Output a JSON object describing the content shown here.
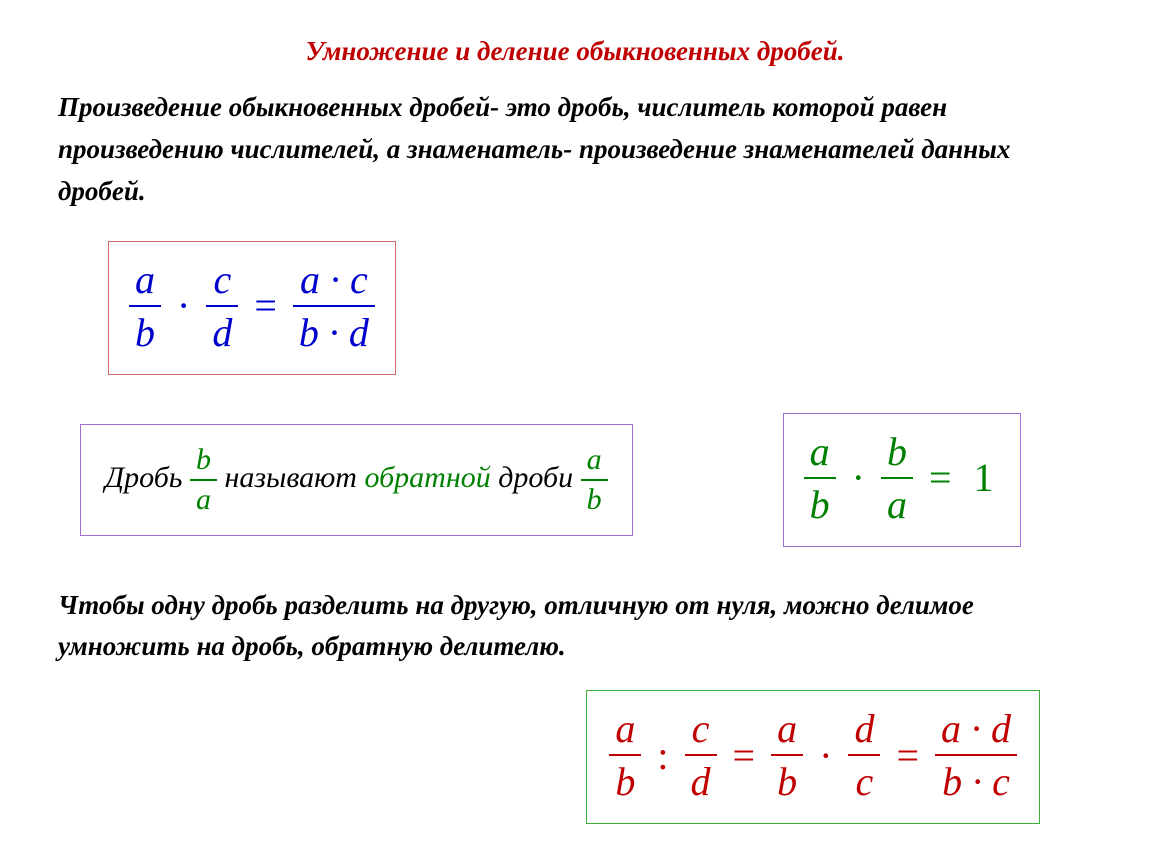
{
  "title": "Умножение  и деление  обыкновенных дробей.",
  "rule1": "Произведение обыкновенных дробей- это дробь, числитель которой равен произведению числителей, а знаменатель- произведение знаменателей данных дробей.",
  "formula1": {
    "f1": {
      "num": "a",
      "den": "b"
    },
    "op1": "·",
    "f2": {
      "num": "c",
      "den": "d"
    },
    "eq": "=",
    "f3": {
      "num": "a · c",
      "den": "b · d"
    },
    "color": "#0000cc",
    "border_color": "#d46a6a",
    "fontsize": 40
  },
  "reciprocal": {
    "t1": "Дробь ",
    "f1": {
      "num": "b",
      "den": "a"
    },
    "t2": " называют ",
    "kw": "обратной",
    "t3": " дроби ",
    "f2": {
      "num": "a",
      "den": "b"
    },
    "frac_color": "#008000",
    "border_color": "#a070d0"
  },
  "prod_one": {
    "f1": {
      "num": "a",
      "den": "b"
    },
    "op1": "·",
    "f2": {
      "num": "b",
      "den": "a"
    },
    "eq": "=",
    "rhs": "1",
    "color": "#008000",
    "border_color": "#a070d0"
  },
  "rule2": "Чтобы одну дробь разделить на другую, отличную от нуля, можно делимое умножить на дробь, обратную делителю.",
  "formula2": {
    "f1": {
      "num": "a",
      "den": "b"
    },
    "op1": ":",
    "f2": {
      "num": "c",
      "den": "d"
    },
    "eq1": "=",
    "f3": {
      "num": "a",
      "den": "b"
    },
    "op2": "·",
    "f4": {
      "num": "d",
      "den": "c"
    },
    "eq2": "=",
    "f5": {
      "num": "a · d",
      "den": "b · c"
    },
    "color": "#c00000",
    "border_color": "#3bad3b",
    "fontsize": 40
  },
  "style": {
    "page_bg": "#ffffff",
    "title_color": "#c00000",
    "body_text_color": "#000000",
    "body_fontsize": 27,
    "body_font": "Times New Roman, italic, bold"
  }
}
